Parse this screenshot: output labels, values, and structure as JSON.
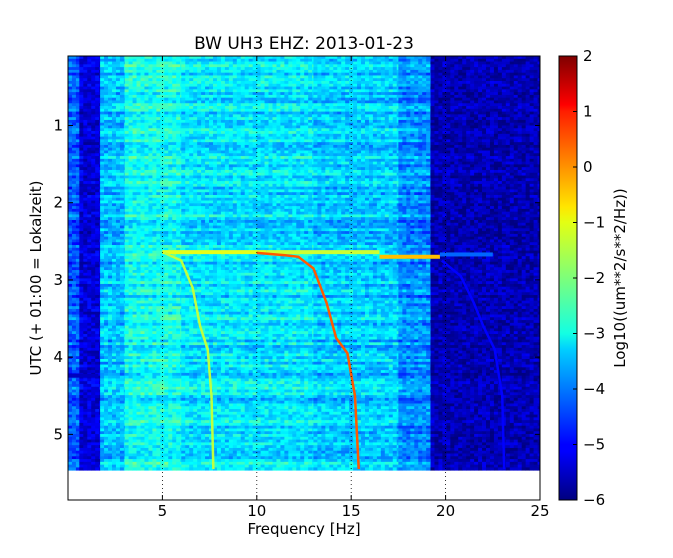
{
  "chart_data": {
    "type": "heatmap",
    "title": "BW UH3 EHZ: 2013-01-23",
    "xlabel": "Frequency [Hz]",
    "ylabel": "UTC (+ 01:00 = Lokalzeit)",
    "xlim": [
      0,
      25
    ],
    "ylim": [
      5.85,
      0.1
    ],
    "data_ylim": [
      0.1,
      5.45
    ],
    "xticks": [
      5,
      10,
      15,
      20,
      25
    ],
    "xtick_labels": [
      "5",
      "10",
      "15",
      "20",
      "25"
    ],
    "yticks": [
      1,
      2,
      3,
      4,
      5
    ],
    "ytick_labels": [
      "1",
      "2",
      "3",
      "4",
      "5"
    ],
    "grid_x": true,
    "grid_style": "dotted",
    "colormap": "jet",
    "colorbar": {
      "label": "Log10((um**2/s**2/Hz))",
      "min": -6,
      "max": 2,
      "ticks": [
        2,
        1,
        0,
        -1,
        -2,
        -3,
        -4,
        -5,
        -6
      ],
      "tick_labels": [
        "2",
        "1",
        "0",
        "−1",
        "−2",
        "−3",
        "−4",
        "−5",
        "−6"
      ]
    },
    "background_bands": [
      {
        "f0": 0.0,
        "f1": 0.6,
        "level": -4.3
      },
      {
        "f0": 0.6,
        "f1": 1.7,
        "level": -5.3
      },
      {
        "f0": 1.7,
        "f1": 3.0,
        "level": -3.5
      },
      {
        "f0": 3.0,
        "f1": 6.0,
        "level": -2.9
      },
      {
        "f0": 6.0,
        "f1": 13.0,
        "level": -3.2
      },
      {
        "f0": 13.0,
        "f1": 17.5,
        "level": -3.4
      },
      {
        "f0": 17.5,
        "f1": 19.2,
        "level": -3.9
      },
      {
        "f0": 19.2,
        "f1": 25.0,
        "level": -5.6
      }
    ],
    "sweep_tracks": [
      {
        "level": -1.5,
        "points": [
          [
            5.1,
            2.65
          ],
          [
            6.0,
            2.75
          ],
          [
            6.6,
            3.1
          ],
          [
            7.0,
            3.6
          ],
          [
            7.4,
            3.9
          ],
          [
            7.6,
            4.5
          ],
          [
            7.7,
            5.45
          ]
        ]
      },
      {
        "level": 0.3,
        "points": [
          [
            10.0,
            2.65
          ],
          [
            11.5,
            2.68
          ],
          [
            12.2,
            2.7
          ],
          [
            13.0,
            2.85
          ],
          [
            13.7,
            3.3
          ],
          [
            14.2,
            3.75
          ],
          [
            14.8,
            3.95
          ],
          [
            15.2,
            4.5
          ],
          [
            15.4,
            5.45
          ]
        ]
      },
      {
        "level": -5.0,
        "points": [
          [
            19.8,
            2.75
          ],
          [
            20.8,
            2.95
          ],
          [
            21.5,
            3.3
          ],
          [
            22.0,
            3.6
          ],
          [
            22.6,
            3.9
          ],
          [
            23.0,
            4.5
          ],
          [
            23.1,
            5.45
          ]
        ]
      }
    ],
    "horizontal_streaks": [
      {
        "time": 2.64,
        "f0": 5.0,
        "f1": 10.5,
        "level": -1.2
      },
      {
        "time": 2.64,
        "f0": 10.5,
        "f1": 16.5,
        "level": -1.4
      },
      {
        "time": 2.7,
        "f0": 16.5,
        "f1": 19.7,
        "level": -0.5
      },
      {
        "time": 2.67,
        "f0": 19.7,
        "f1": 22.5,
        "level": -4.2
      },
      {
        "time": 4.24,
        "f0": 0.0,
        "f1": 1.6,
        "level": -5.5
      }
    ]
  }
}
